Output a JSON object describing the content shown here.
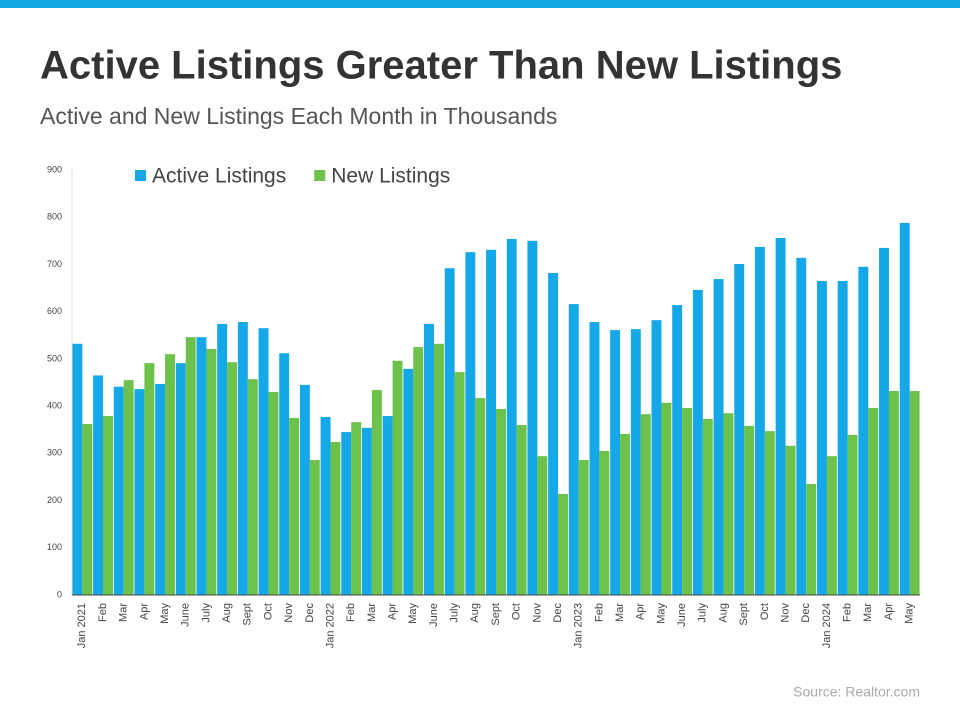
{
  "chart_data": {
    "type": "bar",
    "title": "Active Listings Greater Than New Listings",
    "subtitle": "Active and New Listings Each Month in Thousands",
    "source": "Source: Realtor.com",
    "categories": [
      "Jan 2021",
      "Feb",
      "Mar",
      "Apr",
      "May",
      "June",
      "July",
      "Aug",
      "Sept",
      "Oct",
      "Nov",
      "Dec",
      "Jan 2022",
      "Feb",
      "Mar",
      "Apr",
      "May",
      "June",
      "July",
      "Aug",
      "Sept",
      "Oct",
      "Nov",
      "Dec",
      "Jan 2023",
      "Feb",
      "Mar",
      "Apr",
      "May",
      "June",
      "July",
      "Aug",
      "Sept",
      "Oct",
      "Nov",
      "Dec",
      "Jan 2024",
      "Feb",
      "Mar",
      "Apr",
      "May"
    ],
    "series": [
      {
        "name": "Active Listings",
        "color": "#14a8e8",
        "values": [
          532,
          465,
          441,
          436,
          447,
          491,
          546,
          574,
          578,
          565,
          512,
          445,
          377,
          345,
          354,
          379,
          479,
          574,
          692,
          726,
          731,
          754,
          750,
          682,
          616,
          578,
          561,
          563,
          582,
          614,
          646,
          669,
          701,
          737,
          756,
          714,
          665,
          665,
          695,
          735,
          788
        ]
      },
      {
        "name": "New Listings",
        "color": "#6cc24a",
        "values": [
          362,
          379,
          455,
          491,
          510,
          546,
          521,
          493,
          457,
          430,
          375,
          286,
          324,
          366,
          434,
          496,
          525,
          532,
          472,
          417,
          394,
          360,
          294,
          214,
          286,
          305,
          341,
          383,
          407,
          396,
          373,
          385,
          358,
          347,
          316,
          235,
          294,
          339,
          396,
          432,
          432
        ]
      }
    ],
    "ylim": [
      0,
      900
    ],
    "yticks": [
      0,
      100,
      200,
      300,
      400,
      500,
      600,
      700,
      800,
      900
    ],
    "grid": false
  }
}
